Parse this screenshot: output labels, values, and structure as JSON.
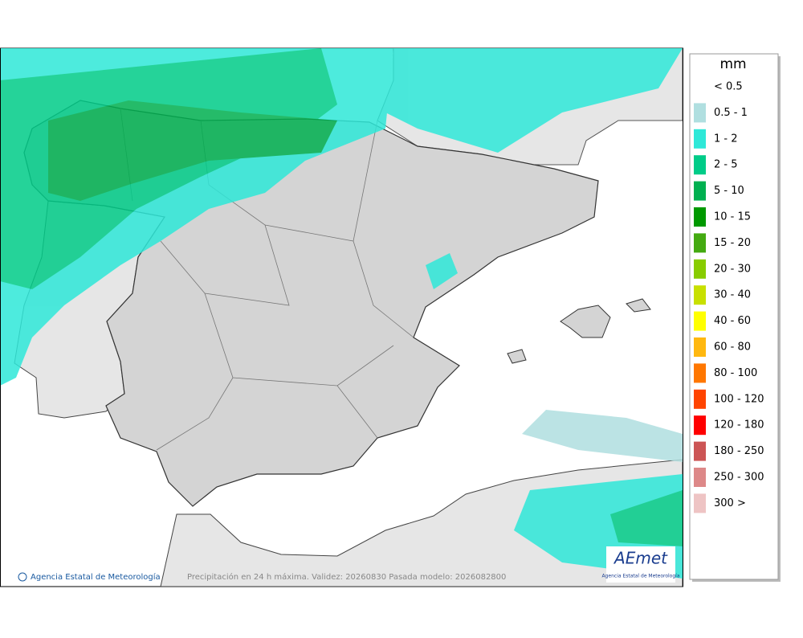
{
  "legend": {
    "unit": "mm",
    "entries": [
      {
        "label": "< 0.5",
        "color": "#ffffff"
      },
      {
        "label": "0.5 - 1",
        "color": "#b0dfe0"
      },
      {
        "label": "1 - 2",
        "color": "#2ee8d8"
      },
      {
        "label": "2 - 5",
        "color": "#00cc88"
      },
      {
        "label": "5 - 10",
        "color": "#00b050"
      },
      {
        "label": "10 - 15",
        "color": "#009900"
      },
      {
        "label": "15 - 20",
        "color": "#44aa11"
      },
      {
        "label": "20 - 30",
        "color": "#88cc00"
      },
      {
        "label": "30 - 40",
        "color": "#c8e000"
      },
      {
        "label": "40 - 60",
        "color": "#ffff00"
      },
      {
        "label": "60 - 80",
        "color": "#ffb810"
      },
      {
        "label": "80 - 100",
        "color": "#ff7700"
      },
      {
        "label": "100 - 120",
        "color": "#ff4400"
      },
      {
        "label": "120 - 180",
        "color": "#ff0000"
      },
      {
        "label": "180 - 250",
        "color": "#cc5555"
      },
      {
        "label": "250 - 300",
        "color": "#dd8888"
      },
      {
        "label": "300 >",
        "color": "#eec4c4"
      }
    ]
  },
  "footer": {
    "credit": "Agencia Estatal de Meteorología",
    "caption": "Precipitación en 24 h máxima. Validez: 20260830 Pasada modelo: 2026082800"
  },
  "logo": {
    "text": "AEmet",
    "subtitle": "Agencia Estatal de Meteorología"
  }
}
